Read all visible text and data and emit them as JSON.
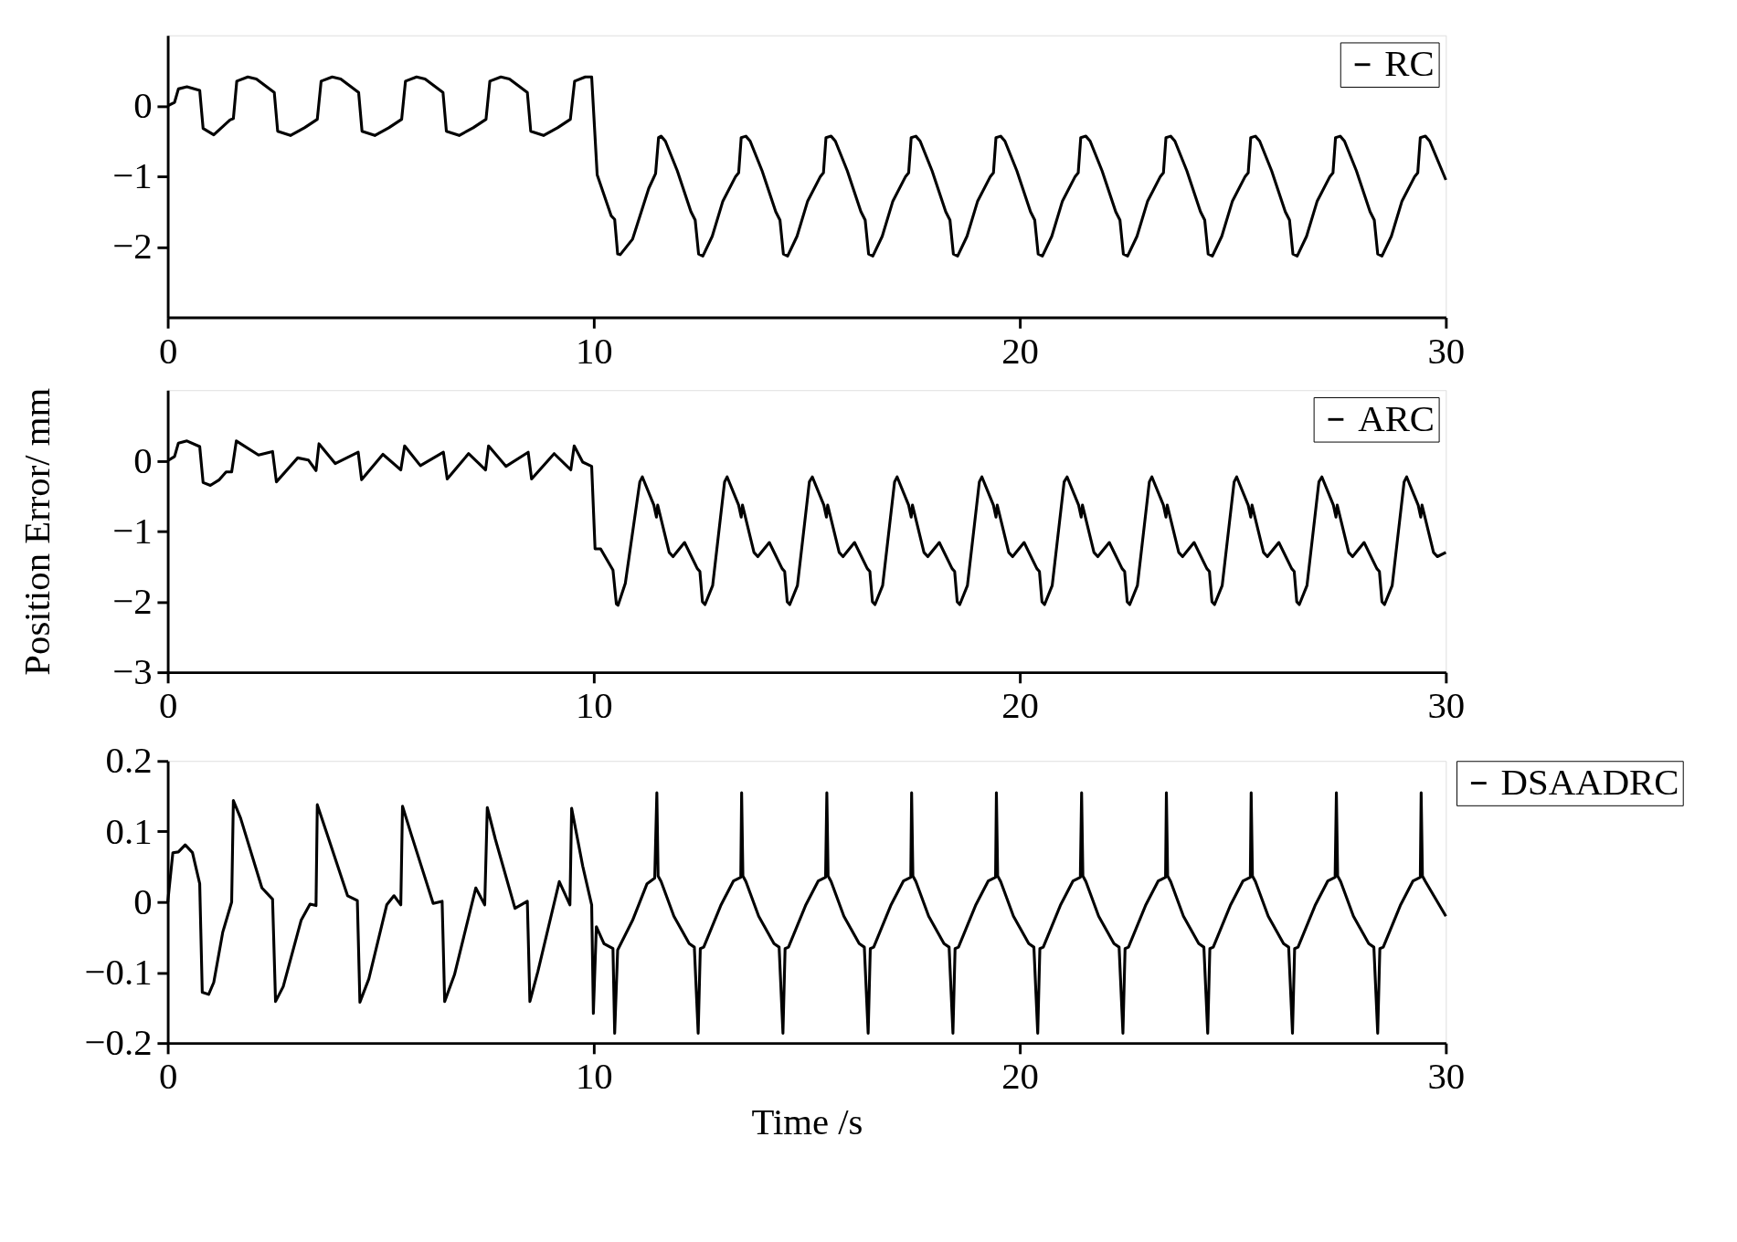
{
  "chart_data": [
    {
      "type": "line",
      "xlim": [
        0,
        30
      ],
      "xticks": [
        0,
        10,
        20,
        30
      ],
      "ylim": [
        -3,
        1
      ],
      "yticks": [
        0,
        {
          "value": -1,
          "label": "−1"
        },
        {
          "value": -2,
          "label": "−2"
        }
      ],
      "grid": false,
      "legend": "top right",
      "series": [
        {
          "name": "RC",
          "color": "#000000",
          "x": [
            0,
            0.16,
            0.25,
            0.45,
            0.75,
            0.83,
            1.08,
            1.46,
            1.54,
            1.62,
            1.88,
            2.08,
            2.5,
            2.58,
            2.88,
            3.21,
            3.51,
            3.6,
            3.86,
            4.06,
            4.48,
            4.56,
            4.86,
            5.19,
            5.49,
            5.58,
            5.84,
            6.04,
            6.46,
            6.54,
            6.84,
            7.17,
            7.47,
            7.56,
            7.82,
            8.02,
            8.44,
            8.52,
            8.82,
            9.15,
            9.45,
            9.55,
            9.8,
            9.95,
            10.08,
            10.41,
            10.49,
            10.56,
            10.62,
            10.91,
            11.29,
            11.45,
            11.52,
            11.58,
            11.68,
            11.96,
            12.28,
            12.38,
            12.46,
            12.56,
            12.78,
            13.03,
            13.33,
            13.4,
            13.46,
            13.57,
            13.67,
            13.95,
            14.27,
            14.37,
            14.45,
            14.55,
            14.77,
            15.02,
            15.32,
            15.39,
            15.45,
            15.57,
            15.67,
            15.95,
            16.27,
            16.37,
            16.45,
            16.55,
            16.77,
            17.02,
            17.32,
            17.39,
            17.45,
            17.56,
            17.66,
            17.94,
            18.26,
            18.36,
            18.44,
            18.54,
            18.76,
            19.01,
            19.31,
            19.38,
            19.44,
            19.55,
            19.65,
            19.93,
            20.25,
            20.35,
            20.43,
            20.53,
            20.75,
            21.0,
            21.3,
            21.37,
            21.43,
            21.55,
            21.65,
            21.93,
            22.25,
            22.35,
            22.43,
            22.53,
            22.75,
            23.0,
            23.3,
            23.37,
            23.43,
            23.54,
            23.64,
            23.92,
            24.24,
            24.34,
            24.42,
            24.52,
            24.74,
            24.99,
            25.29,
            25.36,
            25.42,
            25.53,
            25.63,
            25.91,
            26.23,
            26.33,
            26.41,
            26.51,
            26.73,
            26.98,
            27.28,
            27.35,
            27.41,
            27.52,
            27.62,
            27.9,
            28.22,
            28.32,
            28.4,
            28.5,
            28.72,
            28.97,
            29.27,
            29.34,
            29.4,
            29.52,
            29.62,
            30
          ],
          "values": [
            0,
            0.05,
            0.24,
            0.27,
            0.22,
            -0.32,
            -0.41,
            -0.2,
            -0.18,
            0.35,
            0.41,
            0.38,
            0.19,
            -0.36,
            -0.42,
            -0.31,
            -0.19,
            0.35,
            0.41,
            0.38,
            0.19,
            -0.36,
            -0.42,
            -0.31,
            -0.19,
            0.35,
            0.41,
            0.38,
            0.19,
            -0.36,
            -0.42,
            -0.31,
            -0.19,
            0.35,
            0.41,
            0.38,
            0.19,
            -0.36,
            -0.42,
            -0.31,
            -0.19,
            0.35,
            0.41,
            0.41,
            -0.98,
            -1.56,
            -1.61,
            -2.1,
            -2.11,
            -1.89,
            -1.17,
            -0.96,
            -0.45,
            -0.43,
            -0.5,
            -0.92,
            -1.5,
            -1.62,
            -2.1,
            -2.13,
            -1.85,
            -1.35,
            -1.0,
            -0.95,
            -0.45,
            -0.43,
            -0.5,
            -0.92,
            -1.5,
            -1.62,
            -2.1,
            -2.13,
            -1.85,
            -1.35,
            -1.0,
            -0.95,
            -0.45,
            -0.43,
            -0.5,
            -0.92,
            -1.5,
            -1.62,
            -2.1,
            -2.13,
            -1.85,
            -1.35,
            -1.0,
            -0.95,
            -0.45,
            -0.43,
            -0.5,
            -0.92,
            -1.5,
            -1.62,
            -2.1,
            -2.13,
            -1.85,
            -1.35,
            -1.0,
            -0.95,
            -0.45,
            -0.43,
            -0.5,
            -0.92,
            -1.5,
            -1.62,
            -2.1,
            -2.13,
            -1.85,
            -1.35,
            -1.0,
            -0.95,
            -0.45,
            -0.43,
            -0.5,
            -0.92,
            -1.5,
            -1.62,
            -2.1,
            -2.13,
            -1.85,
            -1.35,
            -1.0,
            -0.95,
            -0.45,
            -0.43,
            -0.5,
            -0.92,
            -1.5,
            -1.62,
            -2.1,
            -2.13,
            -1.85,
            -1.35,
            -1.0,
            -0.95,
            -0.45,
            -0.43,
            -0.5,
            -0.92,
            -1.5,
            -1.62,
            -2.1,
            -2.13,
            -1.85,
            -1.35,
            -1.0,
            -0.95,
            -0.45,
            -0.43,
            -0.5,
            -0.92,
            -1.5,
            -1.62,
            -2.1,
            -2.13,
            -1.85,
            -1.35,
            -1.0,
            -0.95,
            -0.45,
            -0.43,
            -0.5,
            -1.05
          ]
        }
      ]
    },
    {
      "type": "line",
      "xlim": [
        0,
        30
      ],
      "xticks": [
        0,
        10,
        20,
        30
      ],
      "ylim": [
        -3,
        1
      ],
      "yticks": [
        0,
        {
          "value": -1,
          "label": "−1"
        },
        {
          "value": -2,
          "label": "−2"
        },
        {
          "value": -3,
          "label": "−3"
        }
      ],
      "grid": false,
      "legend": "top right",
      "ylabel": "Position Error/ mm",
      "series": [
        {
          "name": "ARC",
          "color": "#000000",
          "x": [
            0,
            0.16,
            0.25,
            0.45,
            0.75,
            0.83,
            1.0,
            1.21,
            1.37,
            1.5,
            1.61,
            2.13,
            2.46,
            2.55,
            3.05,
            3.3,
            3.48,
            3.55,
            3.93,
            4.47,
            4.55,
            5.05,
            5.47,
            5.56,
            5.93,
            6.47,
            6.56,
            7.06,
            7.46,
            7.53,
            7.94,
            8.46,
            8.54,
            9.07,
            9.46,
            9.54,
            9.74,
            9.95,
            10.03,
            10.16,
            10.45,
            10.53,
            10.57,
            10.74,
            11.08,
            11.14,
            11.41,
            11.47,
            11.5,
            11.77,
            11.86,
            12.13,
            12.43,
            12.49,
            12.55,
            12.61,
            12.79,
            13.07,
            13.13,
            13.4,
            13.46,
            13.49,
            13.76,
            13.85,
            14.12,
            14.42,
            14.48,
            14.54,
            14.6,
            14.78,
            15.06,
            15.13,
            15.4,
            15.46,
            15.49,
            15.76,
            15.85,
            16.12,
            16.42,
            16.48,
            16.54,
            16.6,
            16.78,
            17.06,
            17.12,
            17.39,
            17.45,
            17.48,
            17.75,
            17.84,
            18.11,
            18.41,
            18.47,
            18.53,
            18.59,
            18.77,
            19.05,
            19.11,
            19.38,
            19.44,
            19.47,
            19.74,
            19.83,
            20.1,
            20.4,
            20.46,
            20.52,
            20.58,
            20.76,
            21.04,
            21.11,
            21.38,
            21.44,
            21.47,
            21.74,
            21.83,
            22.1,
            22.4,
            22.46,
            22.52,
            22.58,
            22.76,
            23.04,
            23.1,
            23.37,
            23.43,
            23.46,
            23.73,
            23.82,
            24.09,
            24.39,
            24.45,
            24.51,
            24.57,
            24.75,
            25.03,
            25.09,
            25.36,
            25.42,
            25.45,
            25.72,
            25.81,
            26.08,
            26.38,
            26.44,
            26.5,
            26.56,
            26.74,
            27.02,
            27.09,
            27.36,
            27.42,
            27.45,
            27.72,
            27.81,
            28.08,
            28.38,
            28.44,
            28.5,
            28.56,
            28.74,
            29.02,
            29.08,
            29.35,
            29.41,
            29.44,
            29.71,
            29.8,
            30
          ],
          "values": [
            0,
            0.06,
            0.25,
            0.28,
            0.2,
            -0.31,
            -0.35,
            -0.27,
            -0.16,
            -0.16,
            0.28,
            0.08,
            0.13,
            -0.3,
            0.04,
            0.01,
            -0.14,
            0.24,
            -0.04,
            0.12,
            -0.27,
            0.09,
            -0.13,
            0.21,
            -0.07,
            0.12,
            -0.26,
            0.1,
            -0.13,
            0.21,
            -0.08,
            0.12,
            -0.26,
            0.1,
            -0.13,
            0.21,
            -0.02,
            -0.08,
            -1.25,
            -1.25,
            -1.55,
            -2.03,
            -2.05,
            -1.74,
            -0.3,
            -0.23,
            -0.63,
            -0.8,
            -0.63,
            -1.3,
            -1.36,
            -1.16,
            -1.53,
            -1.57,
            -2.0,
            -2.04,
            -1.77,
            -0.3,
            -0.23,
            -0.63,
            -0.8,
            -0.63,
            -1.3,
            -1.36,
            -1.16,
            -1.53,
            -1.57,
            -2.0,
            -2.04,
            -1.77,
            -0.3,
            -0.23,
            -0.63,
            -0.8,
            -0.63,
            -1.3,
            -1.36,
            -1.16,
            -1.53,
            -1.57,
            -2.0,
            -2.04,
            -1.77,
            -0.3,
            -0.23,
            -0.63,
            -0.8,
            -0.63,
            -1.3,
            -1.36,
            -1.16,
            -1.53,
            -1.57,
            -2.0,
            -2.04,
            -1.77,
            -0.3,
            -0.23,
            -0.63,
            -0.8,
            -0.63,
            -1.3,
            -1.36,
            -1.16,
            -1.53,
            -1.57,
            -2.0,
            -2.04,
            -1.77,
            -0.3,
            -0.23,
            -0.63,
            -0.8,
            -0.63,
            -1.3,
            -1.36,
            -1.16,
            -1.53,
            -1.57,
            -2.0,
            -2.04,
            -1.77,
            -0.3,
            -0.23,
            -0.63,
            -0.8,
            -0.63,
            -1.3,
            -1.36,
            -1.16,
            -1.53,
            -1.57,
            -2.0,
            -2.04,
            -1.77,
            -0.3,
            -0.23,
            -0.63,
            -0.8,
            -0.63,
            -1.3,
            -1.36,
            -1.16,
            -1.53,
            -1.57,
            -2.0,
            -2.04,
            -1.77,
            -0.3,
            -0.23,
            -0.63,
            -0.8,
            -0.63,
            -1.3,
            -1.36,
            -1.16,
            -1.53,
            -1.57,
            -2.0,
            -2.04,
            -1.77,
            -0.3,
            -0.23,
            -0.63,
            -0.8,
            -0.63,
            -1.3,
            -1.36,
            -1.3
          ]
        }
      ]
    },
    {
      "type": "line",
      "xlim": [
        0,
        30
      ],
      "xticks": [
        0,
        10,
        20,
        30
      ],
      "ylim": [
        -0.2,
        0.2
      ],
      "yticks": [
        0.2,
        0.1,
        {
          "value": 0,
          "label": "0"
        },
        {
          "value": -0.1,
          "label": "−0.1"
        },
        {
          "value": -0.2,
          "label": "−0.2"
        }
      ],
      "grid": false,
      "legend": "right",
      "xlabel": "Time /s",
      "series": [
        {
          "name": "DSAADRC",
          "color": "#000000",
          "x": [
            0,
            0.12,
            0.25,
            0.41,
            0.58,
            0.75,
            0.81,
            0.96,
            1.08,
            1.29,
            1.5,
            1.54,
            1.71,
            2.21,
            2.46,
            2.53,
            2.71,
            3.13,
            3.34,
            3.48,
            3.51,
            3.72,
            4.22,
            4.45,
            4.51,
            4.72,
            5.14,
            5.31,
            5.47,
            5.51,
            5.72,
            6.23,
            6.44,
            6.5,
            6.73,
            7.23,
            7.44,
            7.5,
            7.69,
            8.15,
            8.44,
            8.5,
            8.69,
            9.19,
            9.44,
            9.48,
            9.74,
            9.95,
            9.99,
            10.06,
            10.24,
            10.45,
            10.49,
            10.56,
            10.91,
            11.25,
            11.43,
            11.48,
            11.51,
            11.58,
            11.88,
            12.24,
            12.36,
            12.45,
            12.5,
            12.58,
            12.98,
            13.28,
            13.45,
            13.47,
            13.5,
            13.57,
            13.87,
            14.23,
            14.35,
            14.44,
            14.49,
            14.57,
            14.97,
            15.27,
            15.44,
            15.47,
            15.5,
            15.57,
            15.87,
            16.23,
            16.35,
            16.44,
            16.49,
            16.57,
            16.97,
            17.27,
            17.44,
            17.46,
            17.49,
            17.56,
            17.86,
            18.22,
            18.34,
            18.43,
            18.48,
            18.56,
            18.96,
            19.26,
            19.43,
            19.45,
            19.48,
            19.55,
            19.85,
            20.21,
            20.33,
            20.42,
            20.47,
            20.55,
            20.95,
            21.25,
            21.42,
            21.45,
            21.48,
            21.55,
            21.85,
            22.21,
            22.33,
            22.42,
            22.47,
            22.55,
            22.95,
            23.25,
            23.42,
            23.44,
            23.47,
            23.54,
            23.84,
            24.2,
            24.32,
            24.41,
            24.46,
            24.54,
            24.94,
            25.24,
            25.41,
            25.43,
            25.46,
            25.53,
            25.83,
            26.19,
            26.31,
            26.4,
            26.45,
            26.53,
            26.93,
            27.23,
            27.4,
            27.43,
            27.46,
            27.53,
            27.83,
            28.19,
            28.31,
            28.4,
            28.45,
            28.53,
            28.93,
            29.23,
            29.4,
            29.42,
            29.45,
            29.52,
            30
          ],
          "values": [
            0,
            0.07,
            0.071,
            0.081,
            0.07,
            0.026,
            -0.128,
            -0.131,
            -0.114,
            -0.043,
            0,
            0.144,
            0.119,
            0.02,
            0.004,
            -0.141,
            -0.12,
            -0.026,
            -0.003,
            -0.005,
            0.138,
            0.1,
            0.009,
            0.002,
            -0.142,
            -0.109,
            -0.004,
            0.009,
            -0.004,
            0.136,
            0.095,
            -0.002,
            0.001,
            -0.141,
            -0.103,
            0.02,
            -0.004,
            0.134,
            0.089,
            -0.009,
            0.001,
            -0.141,
            -0.098,
            0.029,
            -0.004,
            0.133,
            0.051,
            -0.004,
            -0.158,
            -0.035,
            -0.059,
            -0.066,
            -0.186,
            -0.068,
            -0.026,
            0.026,
            0.034,
            0.155,
            0.037,
            0.029,
            -0.02,
            -0.059,
            -0.064,
            -0.186,
            -0.066,
            -0.064,
            -0.005,
            0.03,
            0.035,
            0.155,
            0.037,
            0.029,
            -0.02,
            -0.059,
            -0.064,
            -0.186,
            -0.066,
            -0.064,
            -0.005,
            0.03,
            0.035,
            0.155,
            0.037,
            0.029,
            -0.02,
            -0.059,
            -0.064,
            -0.186,
            -0.066,
            -0.064,
            -0.005,
            0.03,
            0.035,
            0.155,
            0.037,
            0.029,
            -0.02,
            -0.059,
            -0.064,
            -0.186,
            -0.066,
            -0.064,
            -0.005,
            0.03,
            0.035,
            0.155,
            0.037,
            0.029,
            -0.02,
            -0.059,
            -0.064,
            -0.186,
            -0.066,
            -0.064,
            -0.005,
            0.03,
            0.035,
            0.155,
            0.037,
            0.029,
            -0.02,
            -0.059,
            -0.064,
            -0.186,
            -0.066,
            -0.064,
            -0.005,
            0.03,
            0.035,
            0.155,
            0.037,
            0.029,
            -0.02,
            -0.059,
            -0.064,
            -0.186,
            -0.066,
            -0.064,
            -0.005,
            0.03,
            0.035,
            0.155,
            0.037,
            0.029,
            -0.02,
            -0.059,
            -0.064,
            -0.186,
            -0.066,
            -0.064,
            -0.005,
            0.03,
            0.035,
            0.155,
            0.037,
            0.029,
            -0.02,
            -0.059,
            -0.064,
            -0.186,
            -0.066,
            -0.064,
            -0.005,
            0.03,
            0.035,
            0.155,
            0.037,
            0.029,
            -0.02
          ]
        }
      ]
    }
  ]
}
